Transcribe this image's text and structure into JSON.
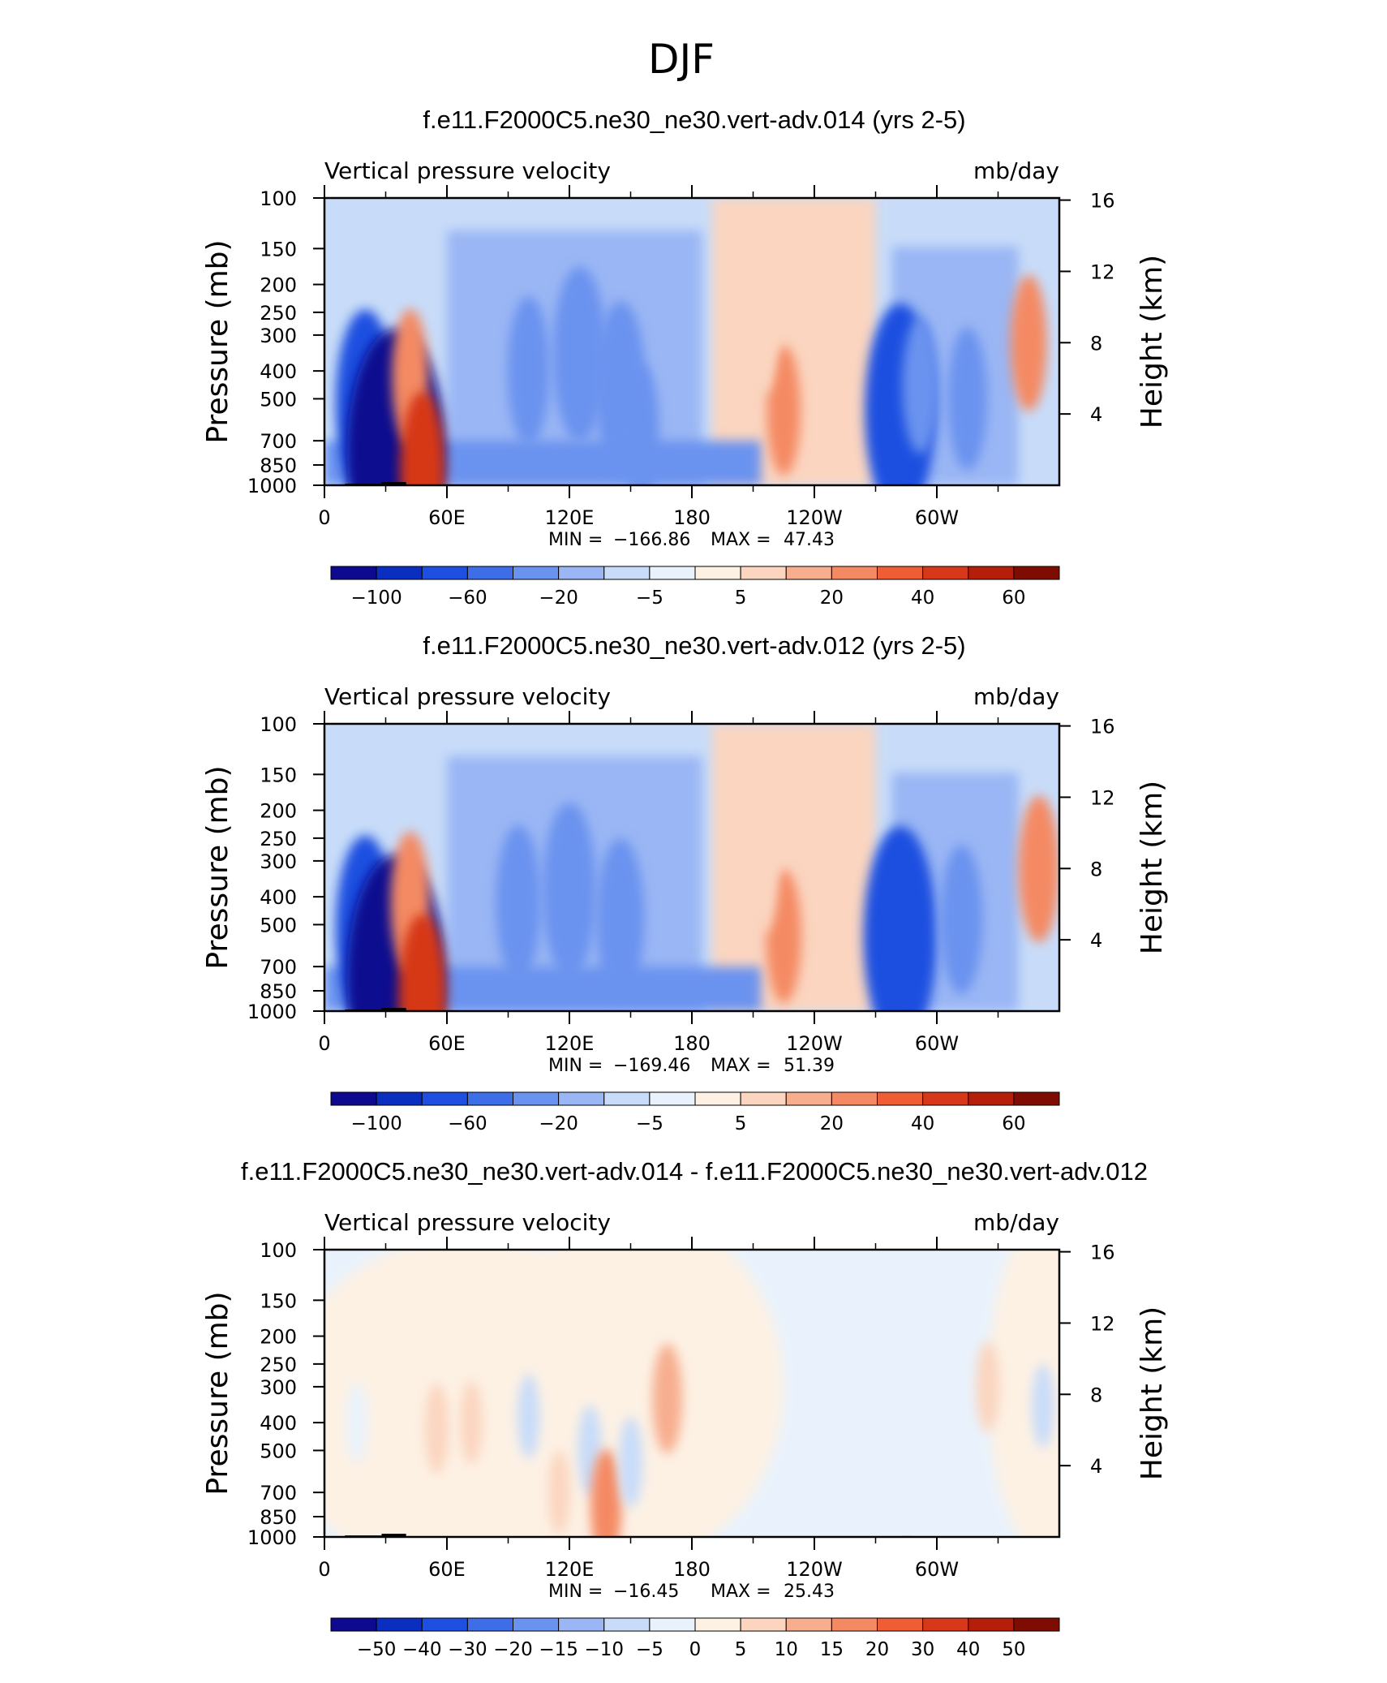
{
  "figure_title": "DJF",
  "chart_data": [
    {
      "type": "heatmap",
      "case_title": "f.e11.F2000C5.ne30_ne30.vert-adv.014 (yrs 2-5)",
      "variable": "Vertical pressure velocity",
      "units": "mb/day",
      "ylabel_left": "Pressure (mb)",
      "ylabel_right": "Height (km)",
      "pressure_ticks": [
        "100",
        "150",
        "200",
        "250",
        "300",
        "400",
        "500",
        "700",
        "850",
        "1000"
      ],
      "height_ticks": [
        "16",
        "12",
        "8",
        "4"
      ],
      "longitude_ticks": [
        "0",
        "60E",
        "120E",
        "180",
        "120W",
        "60W"
      ],
      "xlim": [
        0,
        360
      ],
      "ylim": [
        1000,
        100
      ],
      "stats": {
        "min_label": "MIN =",
        "min": "−166.86",
        "max_label": "MAX =",
        "max": "47.43"
      },
      "colorbar": {
        "levels": [
          "−100",
          "−60",
          "−20",
          "−5",
          "5",
          "20",
          "40",
          "60"
        ],
        "colors": [
          "#0d0a8f",
          "#0a2ebf",
          "#1f4fe0",
          "#3d6ee8",
          "#6a93ef",
          "#9ab6f4",
          "#c8dcf9",
          "#e9f2fc",
          "#fdf1e4",
          "#fbd5c0",
          "#f7ae8f",
          "#f48a63",
          "#ee5d33",
          "#d63819",
          "#b41e0a",
          "#7f0c03"
        ]
      },
      "features": [
        {
          "lon": 20,
          "p": 520,
          "value": -70
        },
        {
          "lon": 35,
          "p": 760,
          "value": -160
        },
        {
          "lon": 42,
          "p": 420,
          "value": 30
        },
        {
          "lon": 48,
          "p": 880,
          "value": 45
        },
        {
          "lon": 100,
          "p": 400,
          "value": -40
        },
        {
          "lon": 125,
          "p": 350,
          "value": -60
        },
        {
          "lon": 145,
          "p": 450,
          "value": -55
        },
        {
          "lon": 155,
          "p": 650,
          "value": -30
        },
        {
          "lon": 225,
          "p": 550,
          "value": 25
        },
        {
          "lon": 215,
          "p": 300,
          "value": 15
        },
        {
          "lon": 282,
          "p": 550,
          "value": -90
        },
        {
          "lon": 292,
          "p": 450,
          "value": -30
        },
        {
          "lon": 315,
          "p": 500,
          "value": -35
        },
        {
          "lon": 345,
          "p": 320,
          "value": 30
        }
      ]
    },
    {
      "type": "heatmap",
      "case_title": "f.e11.F2000C5.ne30_ne30.vert-adv.012 (yrs 2-5)",
      "variable": "Vertical pressure velocity",
      "units": "mb/day",
      "ylabel_left": "Pressure (mb)",
      "ylabel_right": "Height (km)",
      "pressure_ticks": [
        "100",
        "150",
        "200",
        "250",
        "300",
        "400",
        "500",
        "700",
        "850",
        "1000"
      ],
      "height_ticks": [
        "16",
        "12",
        "8",
        "4"
      ],
      "longitude_ticks": [
        "0",
        "60E",
        "120E",
        "180",
        "120W",
        "60W"
      ],
      "xlim": [
        0,
        360
      ],
      "ylim": [
        1000,
        100
      ],
      "stats": {
        "min_label": "MIN =",
        "min": "−169.46",
        "max_label": "MAX =",
        "max": "51.39"
      },
      "colorbar": {
        "levels": [
          "−100",
          "−60",
          "−20",
          "−5",
          "5",
          "20",
          "40",
          "60"
        ],
        "colors": [
          "#0d0a8f",
          "#0a2ebf",
          "#1f4fe0",
          "#3d6ee8",
          "#6a93ef",
          "#9ab6f4",
          "#c8dcf9",
          "#e9f2fc",
          "#fdf1e4",
          "#fbd5c0",
          "#f7ae8f",
          "#f48a63",
          "#ee5d33",
          "#d63819",
          "#b41e0a",
          "#7f0c03"
        ]
      },
      "features": [
        {
          "lon": 20,
          "p": 520,
          "value": -70
        },
        {
          "lon": 35,
          "p": 760,
          "value": -160
        },
        {
          "lon": 42,
          "p": 420,
          "value": 35
        },
        {
          "lon": 48,
          "p": 880,
          "value": 50
        },
        {
          "lon": 95,
          "p": 420,
          "value": -45
        },
        {
          "lon": 120,
          "p": 380,
          "value": -60
        },
        {
          "lon": 145,
          "p": 480,
          "value": -50
        },
        {
          "lon": 225,
          "p": 550,
          "value": 28
        },
        {
          "lon": 215,
          "p": 330,
          "value": 18
        },
        {
          "lon": 282,
          "p": 550,
          "value": -95
        },
        {
          "lon": 312,
          "p": 480,
          "value": -40
        },
        {
          "lon": 350,
          "p": 320,
          "value": 38
        }
      ]
    },
    {
      "type": "heatmap",
      "case_title": "f.e11.F2000C5.ne30_ne30.vert-adv.014 - f.e11.F2000C5.ne30_ne30.vert-adv.012",
      "variable": "Vertical pressure velocity",
      "units": "mb/day",
      "ylabel_left": "Pressure (mb)",
      "ylabel_right": "Height (km)",
      "pressure_ticks": [
        "100",
        "150",
        "200",
        "250",
        "300",
        "400",
        "500",
        "700",
        "850",
        "1000"
      ],
      "height_ticks": [
        "16",
        "12",
        "8",
        "4"
      ],
      "longitude_ticks": [
        "0",
        "60E",
        "120E",
        "180",
        "120W",
        "60W"
      ],
      "xlim": [
        0,
        360
      ],
      "ylim": [
        1000,
        100
      ],
      "stats": {
        "min_label": "MIN =",
        "min": "−16.45",
        "max_label": "MAX =",
        "max": "25.43"
      },
      "colorbar": {
        "levels": [
          "−50",
          "−40",
          "−30",
          "−20",
          "−15",
          "−10",
          "−5",
          "0",
          "5",
          "10",
          "15",
          "20",
          "30",
          "40",
          "50"
        ],
        "colors": [
          "#0d0a8f",
          "#0a2ebf",
          "#1f4fe0",
          "#3d6ee8",
          "#6a93ef",
          "#9ab6f4",
          "#c8dcf9",
          "#e9f2fc",
          "#fdf1e4",
          "#fbd5c0",
          "#f7ae8f",
          "#f48a63",
          "#ee5d33",
          "#d63819",
          "#b41e0a",
          "#7f0c03"
        ]
      },
      "features": [
        {
          "lon": 16,
          "p": 400,
          "value": -5
        },
        {
          "lon": 55,
          "p": 420,
          "value": 8
        },
        {
          "lon": 72,
          "p": 400,
          "value": 6
        },
        {
          "lon": 100,
          "p": 380,
          "value": -6
        },
        {
          "lon": 115,
          "p": 700,
          "value": 6
        },
        {
          "lon": 130,
          "p": 500,
          "value": -8
        },
        {
          "lon": 138,
          "p": 780,
          "value": 15
        },
        {
          "lon": 150,
          "p": 550,
          "value": -8
        },
        {
          "lon": 168,
          "p": 330,
          "value": 14
        },
        {
          "lon": 325,
          "p": 300,
          "value": 8
        },
        {
          "lon": 352,
          "p": 350,
          "value": -6
        }
      ]
    }
  ]
}
